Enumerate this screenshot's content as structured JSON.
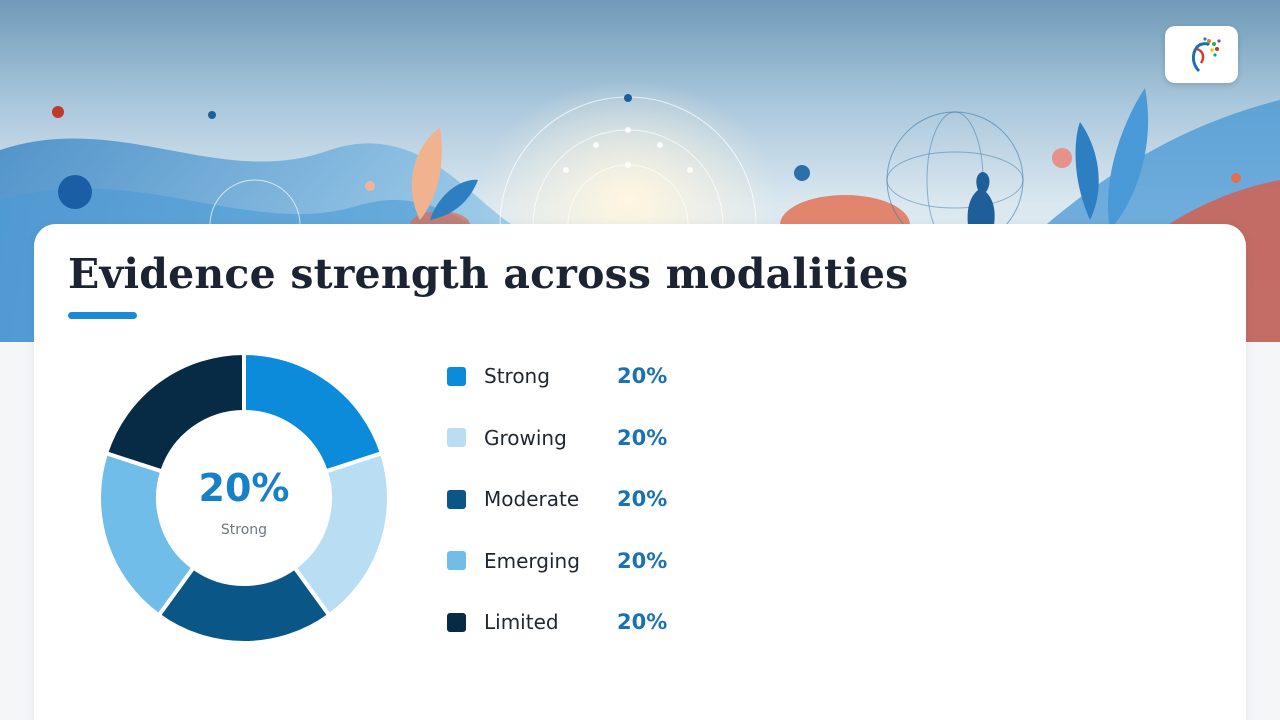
{
  "page": {
    "title": "Evidence strength across modalities",
    "logo_icon": "tree-figure-logo-icon",
    "accent_color": "#1a8ad4"
  },
  "chart_data": {
    "type": "pie",
    "title": "",
    "donut": true,
    "center": {
      "value": "20%",
      "label": "Strong"
    },
    "legend_position": "right",
    "categories": [
      "Strong",
      "Growing",
      "Moderate",
      "Emerging",
      "Limited"
    ],
    "values": [
      20,
      20,
      20,
      20,
      20
    ],
    "value_labels": [
      "20%",
      "20%",
      "20%",
      "20%",
      "20%"
    ],
    "colors": [
      "#0b8bd9",
      "#b9def4",
      "#0a5787",
      "#70bde9",
      "#072a45"
    ]
  }
}
